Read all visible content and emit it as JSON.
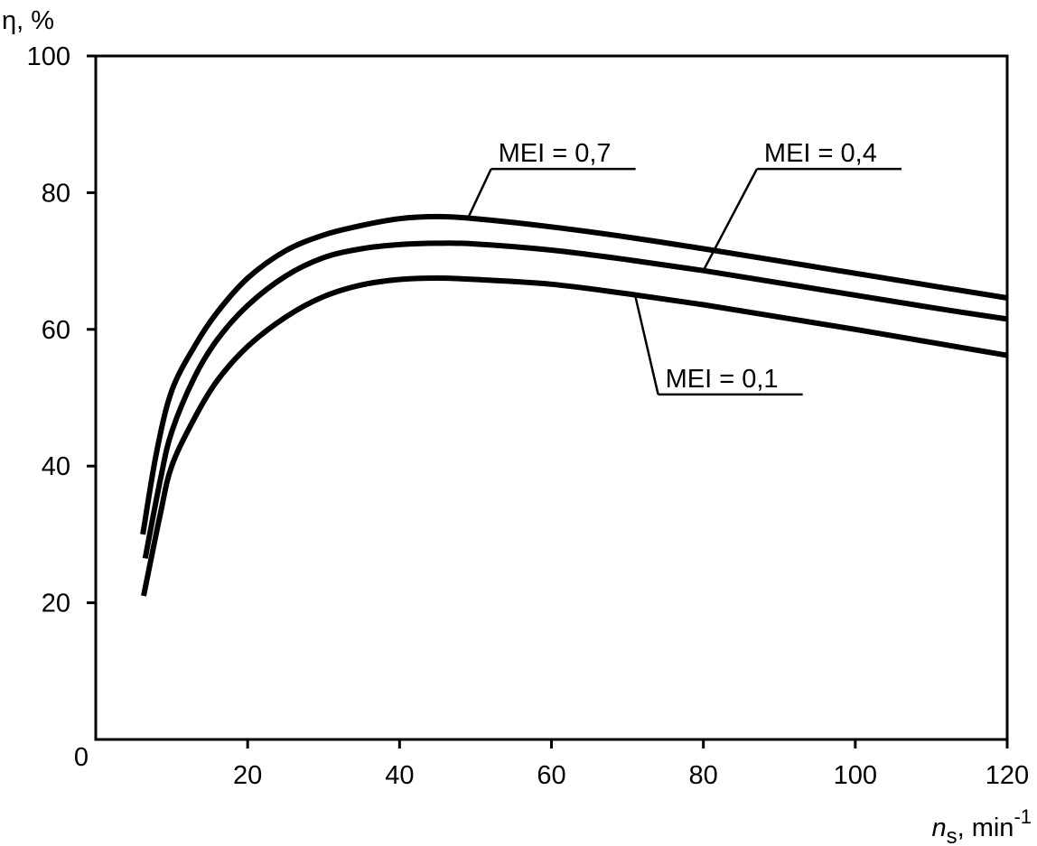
{
  "chart_data": {
    "type": "line",
    "title": "",
    "ylabel": "η, %",
    "xlabel": {
      "base": "n",
      "sub": "s",
      "unit": ", min",
      "sup": "-1"
    },
    "origin_label": "0",
    "xlim": [
      0,
      120
    ],
    "ylim": [
      0,
      100
    ],
    "xticks": [
      20,
      40,
      60,
      80,
      100,
      120
    ],
    "yticks": [
      20,
      40,
      60,
      80,
      100
    ],
    "grid": false,
    "legend": "none",
    "series": [
      {
        "name": "MEI = 0,7",
        "x": [
          6.2,
          8,
          10,
          13,
          16,
          20,
          25,
          30,
          35,
          40,
          45,
          50,
          60,
          70,
          80,
          90,
          100,
          110,
          120
        ],
        "y": [
          30,
          42,
          51,
          57.5,
          62.5,
          67.5,
          71.5,
          73.8,
          75.2,
          76.2,
          76.5,
          76.2,
          75,
          73.5,
          71.8,
          70,
          68.2,
          66.4,
          64.6
        ]
      },
      {
        "name": "MEI = 0,4",
        "x": [
          6.5,
          8.5,
          10,
          13,
          16,
          20,
          25,
          30,
          35,
          40,
          45,
          50,
          60,
          70,
          80,
          90,
          100,
          110,
          120
        ],
        "y": [
          26.5,
          38,
          45,
          53,
          58.5,
          63.5,
          67.8,
          70.5,
          71.8,
          72.4,
          72.6,
          72.5,
          71.6,
          70.2,
          68.6,
          66.8,
          65,
          63.2,
          61.5
        ]
      },
      {
        "name": "MEI = 0,1",
        "x": [
          6.3,
          8.5,
          10,
          13,
          16,
          20,
          25,
          30,
          35,
          40,
          45,
          50,
          60,
          70,
          80,
          90,
          100,
          110,
          120
        ],
        "y": [
          21,
          33,
          40,
          47,
          52.5,
          57.5,
          61.8,
          64.8,
          66.5,
          67.3,
          67.5,
          67.3,
          66.6,
          65.2,
          63.6,
          61.8,
          60,
          58.1,
          56.2
        ]
      }
    ],
    "annotations": [
      {
        "text": "MEI = 0,7",
        "series": 0,
        "at_x": 49,
        "label_x": 53,
        "label_y": 84
      },
      {
        "text": "MEI = 0,4",
        "series": 1,
        "at_x": 80,
        "label_x": 88,
        "label_y": 84
      },
      {
        "text": "MEI = 0,1",
        "series": 2,
        "at_x": 71,
        "label_x": 75,
        "label_y": 51
      }
    ]
  }
}
